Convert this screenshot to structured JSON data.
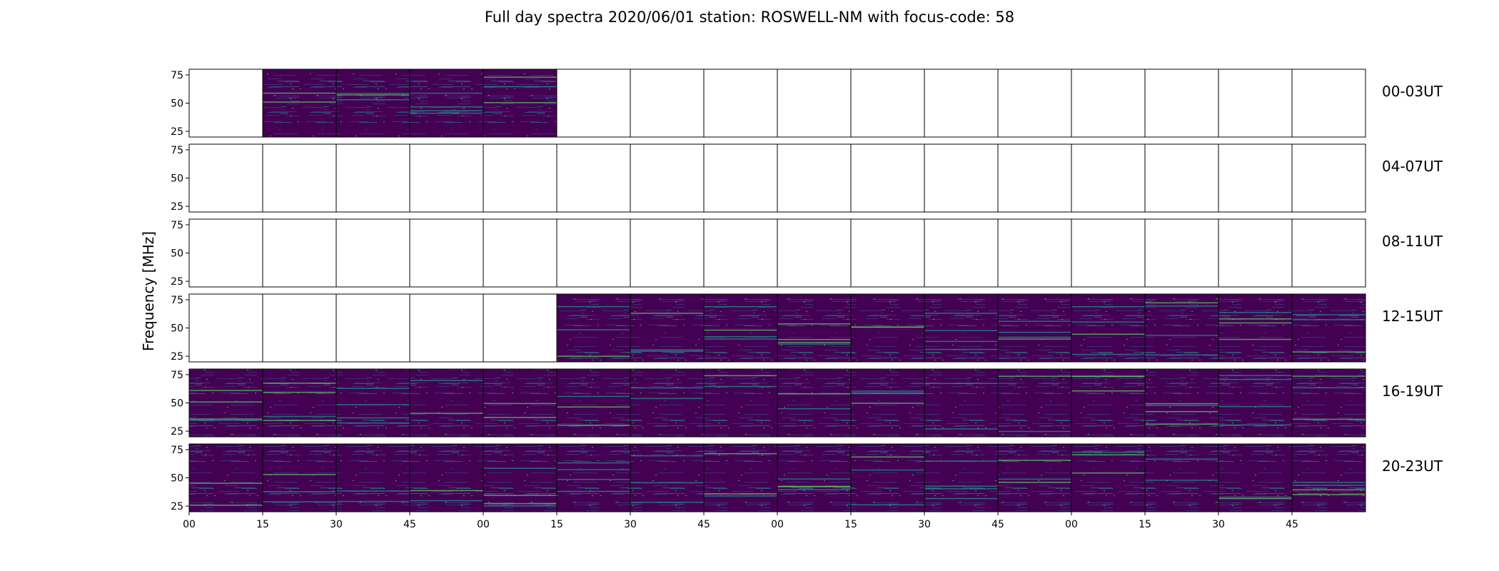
{
  "title": "Full day spectra 2020/06/01 station: ROSWELL-NM with focus-code: 58",
  "chart_data": {
    "type": "heatmap",
    "title": "Full day spectra 2020/06/01 station: ROSWELL-NM with focus-code: 58",
    "ylabel": "Frequency [MHz]",
    "xlabel": "",
    "ylim": [
      20,
      80
    ],
    "yticks": [
      25,
      50,
      75
    ],
    "xticks": [
      "00",
      "15",
      "30",
      "45",
      "00",
      "15",
      "30",
      "45",
      "00",
      "15",
      "30",
      "45",
      "00",
      "15",
      "30",
      "45"
    ],
    "colormap": [
      "#440154",
      "#3b528b",
      "#21918c",
      "#5ec962",
      "#fde725"
    ],
    "rows": [
      {
        "label": "00-03UT",
        "panels": [
          0,
          1,
          1,
          1,
          1,
          0,
          0,
          0,
          0,
          0,
          0,
          0,
          0,
          0,
          0,
          0
        ]
      },
      {
        "label": "04-07UT",
        "panels": [
          0,
          0,
          0,
          0,
          0,
          0,
          0,
          0,
          0,
          0,
          0,
          0,
          0,
          0,
          0,
          0
        ]
      },
      {
        "label": "08-11UT",
        "panels": [
          0,
          0,
          0,
          0,
          0,
          0,
          0,
          0,
          0,
          0,
          0,
          0,
          0,
          0,
          0,
          0
        ]
      },
      {
        "label": "12-15UT",
        "panels": [
          0,
          0,
          0,
          0,
          0,
          1,
          1,
          1,
          1,
          1,
          1,
          1,
          1,
          1,
          1,
          1
        ]
      },
      {
        "label": "16-19UT",
        "panels": [
          1,
          1,
          1,
          1,
          1,
          1,
          1,
          1,
          1,
          1,
          1,
          1,
          1,
          1,
          1,
          1
        ]
      },
      {
        "label": "20-23UT",
        "panels": [
          1,
          1,
          1,
          1,
          1,
          1,
          1,
          1,
          1,
          1,
          1,
          1,
          1,
          1,
          1,
          1
        ]
      }
    ]
  }
}
